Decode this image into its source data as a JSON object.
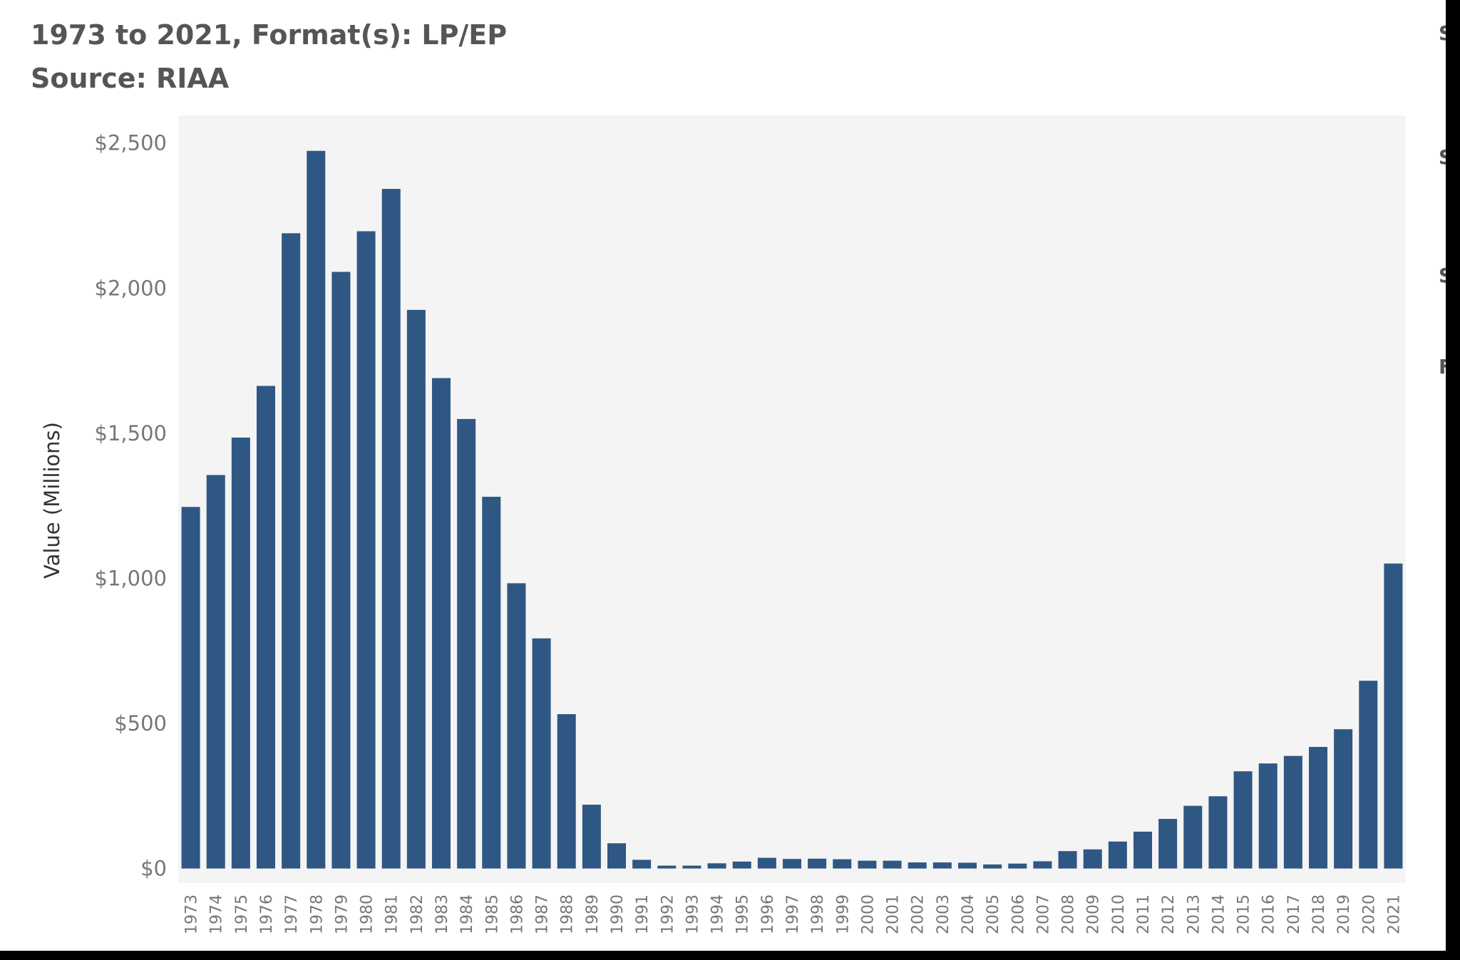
{
  "title": "1973 to 2021, Format(s): LP/EP",
  "subtitle": "Source: RIAA",
  "side_panel": {
    "cut_letters": [
      "S",
      "S",
      "S",
      "F"
    ]
  },
  "colors": {
    "bar": "#2F5783",
    "plot_background": "#F4F4F4",
    "axis_text": "#777777",
    "ylabel_text": "#333333",
    "title_text": "#555555",
    "outer_frame": "#000000"
  },
  "chart_data": {
    "type": "bar",
    "title": "1973 to 2021, Format(s): LP/EP",
    "subtitle": "Source: RIAA",
    "xlabel": "",
    "ylabel": "Value (Millions)",
    "ylim": [
      -50,
      2595
    ],
    "yticks": [
      0,
      500,
      1000,
      1500,
      2000,
      2500
    ],
    "ytick_labels": [
      "$0",
      "$500",
      "$1,000",
      "$1,500",
      "$2,000",
      "$2,500"
    ],
    "grid": false,
    "legend": "none",
    "categories": [
      "1973",
      "1974",
      "1975",
      "1976",
      "1977",
      "1978",
      "1979",
      "1980",
      "1981",
      "1982",
      "1983",
      "1984",
      "1985",
      "1986",
      "1987",
      "1988",
      "1989",
      "1990",
      "1991",
      "1992",
      "1993",
      "1994",
      "1995",
      "1996",
      "1997",
      "1998",
      "1999",
      "2000",
      "2001",
      "2002",
      "2003",
      "2004",
      "2005",
      "2006",
      "2007",
      "2008",
      "2009",
      "2010",
      "2011",
      "2012",
      "2013",
      "2014",
      "2015",
      "2016",
      "2017",
      "2018",
      "2019",
      "2020",
      "2021"
    ],
    "values": [
      1246,
      1356,
      1485,
      1663,
      2189,
      2473,
      2056,
      2196,
      2342,
      1925,
      1690,
      1549,
      1281,
      983,
      793,
      532,
      220,
      87,
      30,
      10,
      10,
      18,
      24,
      37,
      33,
      34,
      32,
      27,
      27,
      21,
      21,
      20,
      14,
      17,
      25,
      60,
      66,
      93,
      127,
      171,
      216,
      249,
      335,
      362,
      388,
      419,
      480,
      647,
      1051
    ]
  }
}
